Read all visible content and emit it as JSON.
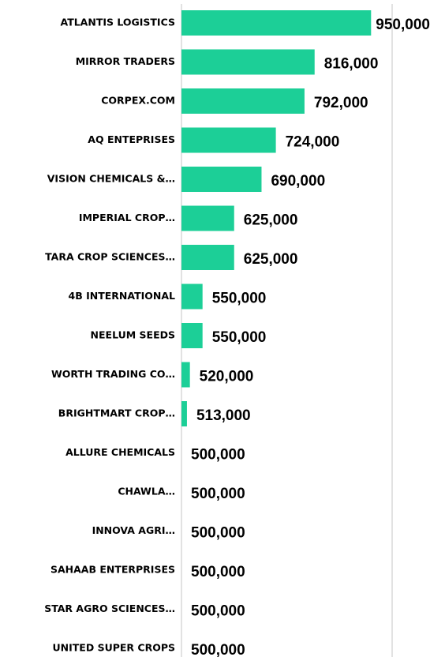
{
  "chart_data": {
    "type": "hbar",
    "categories": [
      "ATLANTIS LOGISTICS",
      "MIRROR TRADERS",
      "CORPEX.COM",
      "AQ ENTEPRISES",
      "VISION CHEMICALS &…",
      "IMPERIAL CROP…",
      "TARA CROP SCIENCES…",
      "4B INTERNATIONAL",
      "NEELUM SEEDS",
      "WORTH TRADING CO…",
      "BRIGHTMART CROP…",
      "ALLURE CHEMICALS",
      "CHAWLA…",
      "INNOVA AGRI…",
      "SAHAAB ENTERPRISES",
      "STAR AGRO SCIENCES…",
      "UNITED SUPER CROPS"
    ],
    "values": [
      950000,
      816000,
      792000,
      724000,
      690000,
      625000,
      625000,
      550000,
      550000,
      520000,
      513000,
      500000,
      500000,
      500000,
      500000,
      500000,
      500000
    ],
    "value_labels": [
      "950,000",
      "816,000",
      "792,000",
      "724,000",
      "690,000",
      "625,000",
      "625,000",
      "550,000",
      "550,000",
      "520,000",
      "513,000",
      "500,000",
      "500,000",
      "500,000",
      "500,000",
      "500,000",
      "500,000"
    ],
    "color": "#1ccf97",
    "xlim": [
      500000,
      1000000
    ],
    "xticks": [
      500000,
      1000000
    ],
    "grid": true
  }
}
